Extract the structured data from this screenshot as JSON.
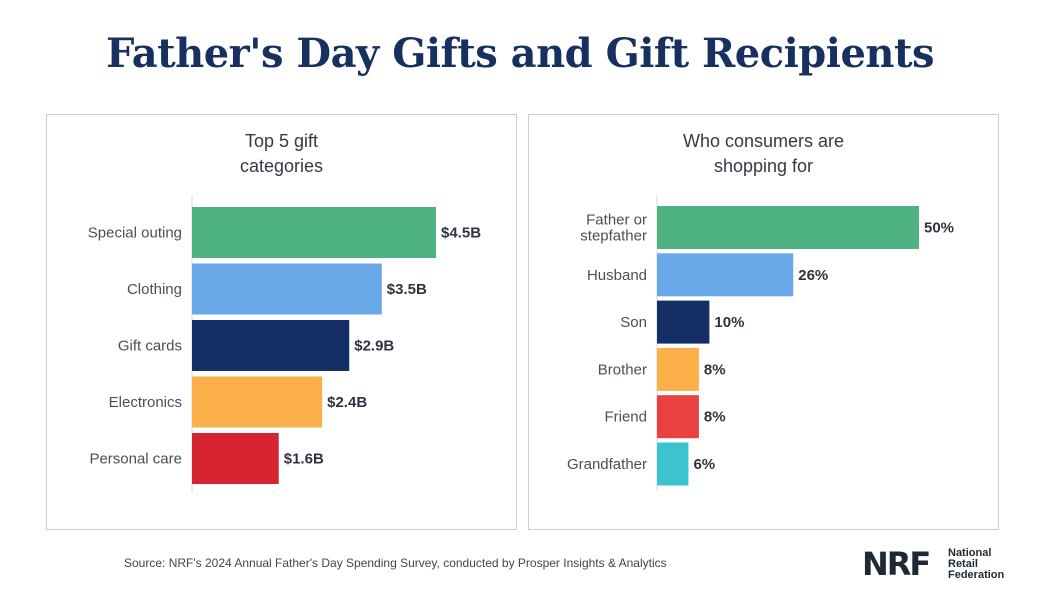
{
  "title": "Father's Day Gifts and Gift Recipients",
  "chart_data": [
    {
      "type": "bar",
      "orientation": "horizontal",
      "title_lines": [
        "Top 5 gift",
        "categories"
      ],
      "categories": [
        "Special outing",
        "Clothing",
        "Gift cards",
        "Electronics",
        "Personal care"
      ],
      "values": [
        4.5,
        3.5,
        2.9,
        2.4,
        1.6
      ],
      "value_labels": [
        "$4.5B",
        "$3.5B",
        "$2.9B",
        "$2.4B",
        "$1.6B"
      ],
      "unit": "billion USD",
      "colors": [
        "#4fb283",
        "#6aa9e9",
        "#142f66",
        "#fbb04a",
        "#d62432"
      ],
      "xlim": [
        0,
        4.5
      ]
    },
    {
      "type": "bar",
      "orientation": "horizontal",
      "title_lines": [
        "Who consumers are",
        "shopping for"
      ],
      "categories": [
        [
          "Father or",
          "stepfather"
        ],
        [
          "Husband"
        ],
        [
          "Son"
        ],
        [
          "Brother"
        ],
        [
          "Friend"
        ],
        [
          "Grandfather"
        ]
      ],
      "values": [
        50,
        26,
        10,
        8,
        8,
        6
      ],
      "value_labels": [
        "50%",
        "26%",
        "10%",
        "8%",
        "8%",
        "6%"
      ],
      "unit": "percent",
      "colors": [
        "#4fb283",
        "#6aa9e9",
        "#142f66",
        "#fbb04a",
        "#e8413e",
        "#3cc3d0"
      ],
      "xlim": [
        0,
        50
      ]
    }
  ],
  "source": "Source: NRF's 2024 Annual Father's Day Spending Survey, conducted by Prosper Insights & Analytics",
  "logo": {
    "mark": "NRF",
    "lines": [
      "National",
      "Retail",
      "Federation"
    ]
  }
}
